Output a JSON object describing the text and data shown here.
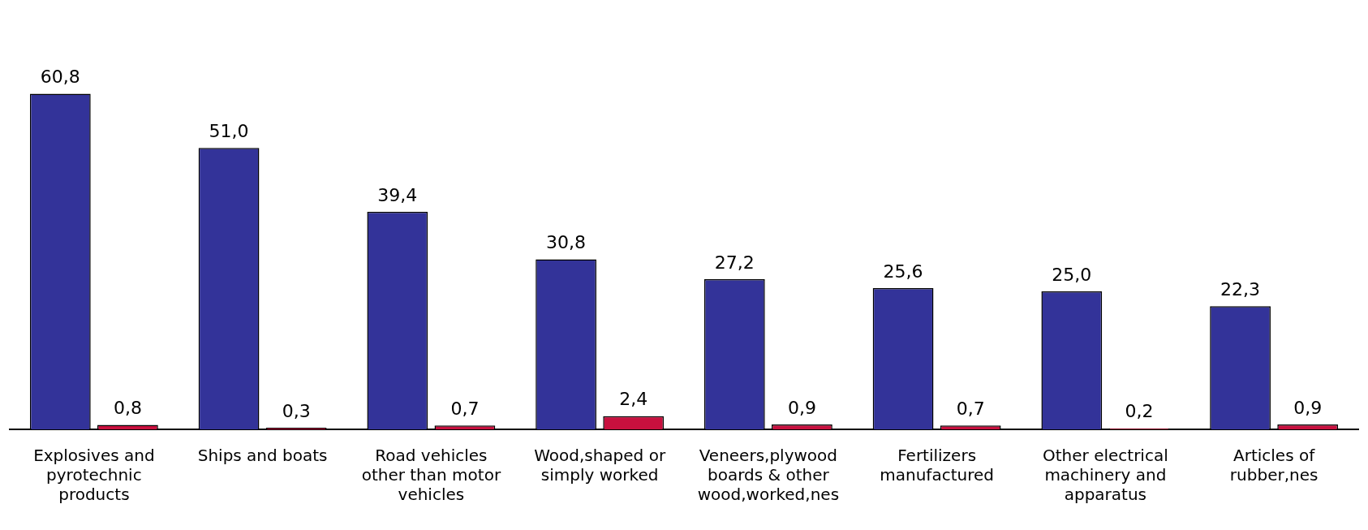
{
  "chart_data": {
    "type": "bar",
    "categories": [
      "Explosives and pyrotechnic products",
      "Ships and boats",
      "Road vehicles other than motor vehicles",
      "Wood,shaped or simply worked",
      "Veneers,plywood boards & other wood,worked,nes",
      "Fertilizers manufactured",
      "Other electrical machinery and apparatus",
      "Articles of rubber,nes"
    ],
    "series": [
      {
        "color": "#333399",
        "values": [
          60.8,
          51.0,
          39.4,
          30.8,
          27.2,
          25.6,
          25.0,
          22.3
        ],
        "value_labels": [
          "60,8",
          "51,0",
          "39,4",
          "30,8",
          "27,2",
          "25,6",
          "25,0",
          "22,3"
        ]
      },
      {
        "color": "#c8103e",
        "values": [
          0.8,
          0.3,
          0.7,
          2.4,
          0.9,
          0.7,
          0.2,
          0.9
        ],
        "value_labels": [
          "0,8",
          "0,3",
          "0,7",
          "2,4",
          "0,9",
          "0,7",
          "0,2",
          "0,9"
        ]
      }
    ],
    "grid": false,
    "legend": false
  }
}
